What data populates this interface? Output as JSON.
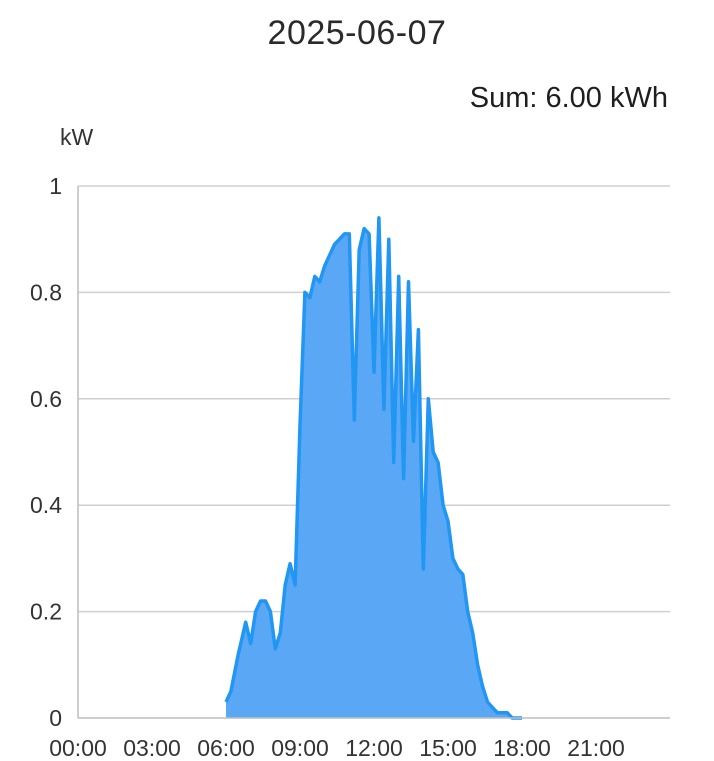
{
  "header": {
    "title": "2025-06-07",
    "sum_label": "Sum: 6.00 kWh"
  },
  "chart_data": {
    "type": "area",
    "title": "2025-06-07",
    "ylabel": "kW",
    "xlabel": "",
    "xlim": [
      0,
      24
    ],
    "ylim": [
      0,
      1
    ],
    "grid": true,
    "line_color": "#2196f3",
    "fill_color": "#5aa8f5",
    "x_ticks": [
      "00:00",
      "03:00",
      "06:00",
      "09:00",
      "12:00",
      "15:00",
      "18:00",
      "21:00"
    ],
    "y_ticks": [
      "0",
      "0.2",
      "0.4",
      "0.6",
      "0.8",
      "1"
    ],
    "series": [
      {
        "x": [
          6.0,
          6.2,
          6.5,
          6.8,
          7.0,
          7.2,
          7.4,
          7.6,
          7.8,
          8.0,
          8.2,
          8.4,
          8.6,
          8.8,
          9.0,
          9.2,
          9.4,
          9.6,
          9.8,
          10.0,
          10.2,
          10.4,
          10.6,
          10.8,
          11.0,
          11.2,
          11.4,
          11.6,
          11.8,
          12.0,
          12.2,
          12.4,
          12.6,
          12.8,
          13.0,
          13.2,
          13.4,
          13.6,
          13.8,
          14.0,
          14.2,
          14.4,
          14.6,
          14.8,
          15.0,
          15.2,
          15.4,
          15.6,
          15.8,
          16.0,
          16.2,
          16.4,
          16.6,
          16.8,
          17.0,
          17.2,
          17.4,
          17.6,
          17.8,
          18.0
        ],
        "y": [
          0.03,
          0.05,
          0.12,
          0.18,
          0.14,
          0.2,
          0.22,
          0.22,
          0.2,
          0.13,
          0.16,
          0.25,
          0.29,
          0.25,
          0.55,
          0.8,
          0.79,
          0.83,
          0.82,
          0.85,
          0.87,
          0.89,
          0.9,
          0.91,
          0.91,
          0.56,
          0.88,
          0.92,
          0.91,
          0.65,
          0.94,
          0.58,
          0.9,
          0.48,
          0.83,
          0.45,
          0.82,
          0.52,
          0.73,
          0.28,
          0.6,
          0.5,
          0.48,
          0.4,
          0.37,
          0.3,
          0.28,
          0.27,
          0.2,
          0.16,
          0.1,
          0.06,
          0.03,
          0.02,
          0.01,
          0.01,
          0.01,
          0.0,
          0.0,
          0.0
        ]
      }
    ]
  }
}
